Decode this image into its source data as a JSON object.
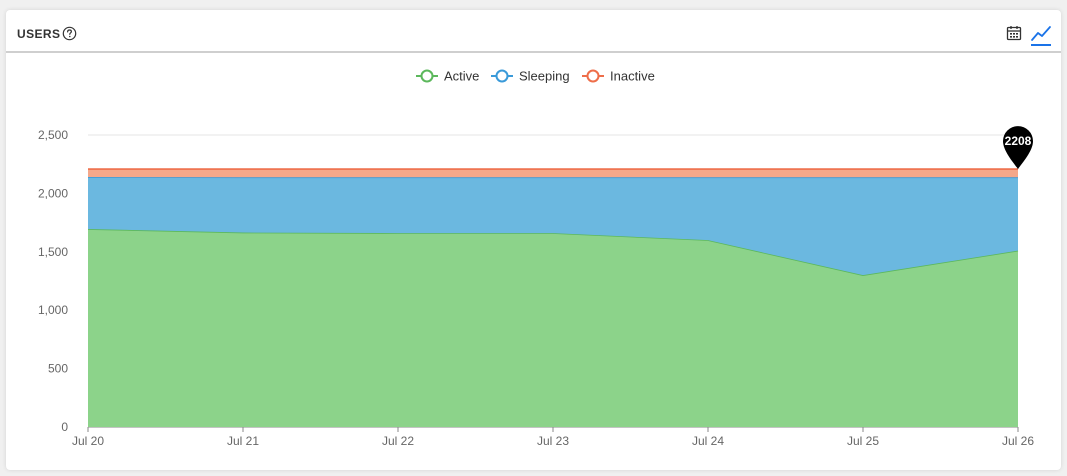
{
  "header": {
    "title": "USERS",
    "help_icon": "question-circle-icon",
    "calendar_icon": "calendar-icon",
    "line_chart_icon": "line-chart-icon"
  },
  "colors": {
    "active": "#5cb85c",
    "active_fill": "#8cd38a",
    "sleeping": "#3a9ad9",
    "sleeping_fill": "#6bb8e0",
    "inactive": "#ee6e4a",
    "inactive_fill": "#f5a88a",
    "accent": "#1a73e8"
  },
  "chart_data": {
    "type": "area",
    "stacked": true,
    "categories": [
      "Jul 20",
      "Jul 21",
      "Jul 22",
      "Jul 23",
      "Jul 24",
      "Jul 25",
      "Jul 26"
    ],
    "series": [
      {
        "name": "Active",
        "values": [
          1695,
          1665,
          1660,
          1660,
          1600,
          1300,
          1510
        ]
      },
      {
        "name": "Sleeping",
        "values": [
          445,
          473,
          478,
          478,
          538,
          838,
          628
        ]
      },
      {
        "name": "Inactive",
        "values": [
          68,
          70,
          70,
          70,
          70,
          70,
          70
        ]
      }
    ],
    "y_ticks": [
      "0",
      "500",
      "1,000",
      "1,500",
      "2,000",
      "2,500"
    ],
    "ylim": [
      0,
      2500
    ],
    "legend_position": "top-center",
    "grid": true,
    "marker": {
      "label": "2208",
      "value": 2208,
      "category": "Jul 26"
    }
  }
}
